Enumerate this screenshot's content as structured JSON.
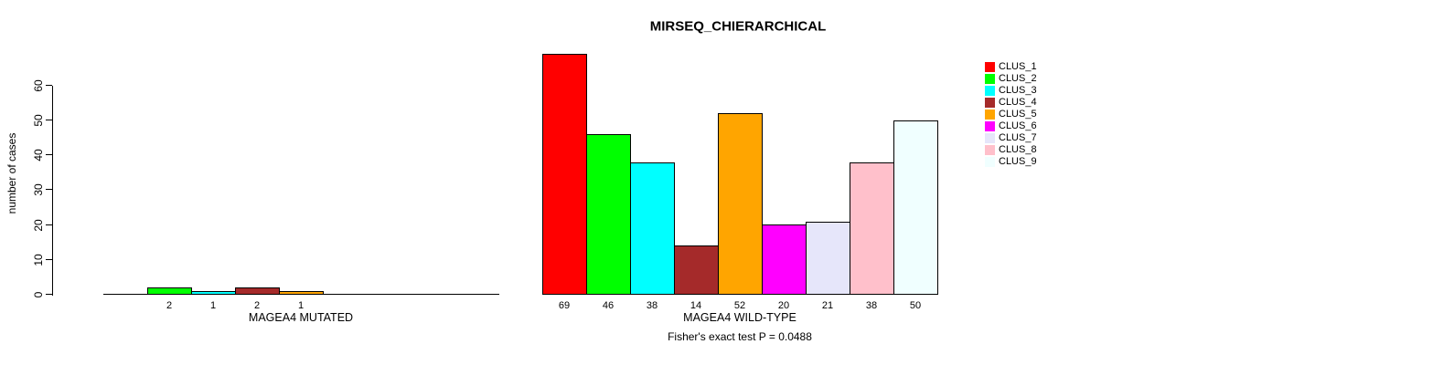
{
  "chart_data": {
    "type": "bar",
    "title": "MIRSEQ_CHIERARCHICAL",
    "ylabel": "number of cases",
    "annotation": "Fisher's exact test P = 0.0488",
    "ylim": [
      0,
      69
    ],
    "yticks": [
      0,
      10,
      20,
      30,
      40,
      50,
      60
    ],
    "grid": false,
    "legend_position": "right",
    "legend": [
      {
        "label": "CLUS_1",
        "color": "#FF0000"
      },
      {
        "label": "CLUS_2",
        "color": "#00FF00"
      },
      {
        "label": "CLUS_3",
        "color": "#00FFFF"
      },
      {
        "label": "CLUS_4",
        "color": "#A52A2A"
      },
      {
        "label": "CLUS_5",
        "color": "#FFA500"
      },
      {
        "label": "CLUS_6",
        "color": "#FF00FF"
      },
      {
        "label": "CLUS_7",
        "color": "#E6E6FA"
      },
      {
        "label": "CLUS_8",
        "color": "#FFC0CB"
      },
      {
        "label": "CLUS_9",
        "color": "#F0FFFF"
      }
    ],
    "groups": [
      {
        "xlabel": "MAGEA4 MUTATED",
        "values": [
          0,
          2,
          1,
          2,
          1,
          0,
          0,
          0,
          0
        ],
        "bar_labels": [
          "",
          "2",
          "1",
          "2",
          "1",
          "",
          "",
          "",
          ""
        ]
      },
      {
        "xlabel": "MAGEA4 WILD-TYPE",
        "values": [
          69,
          46,
          38,
          14,
          52,
          20,
          21,
          38,
          50
        ],
        "bar_labels": [
          "69",
          "46",
          "38",
          "14",
          "52",
          "20",
          "21",
          "38",
          "50"
        ]
      }
    ]
  }
}
